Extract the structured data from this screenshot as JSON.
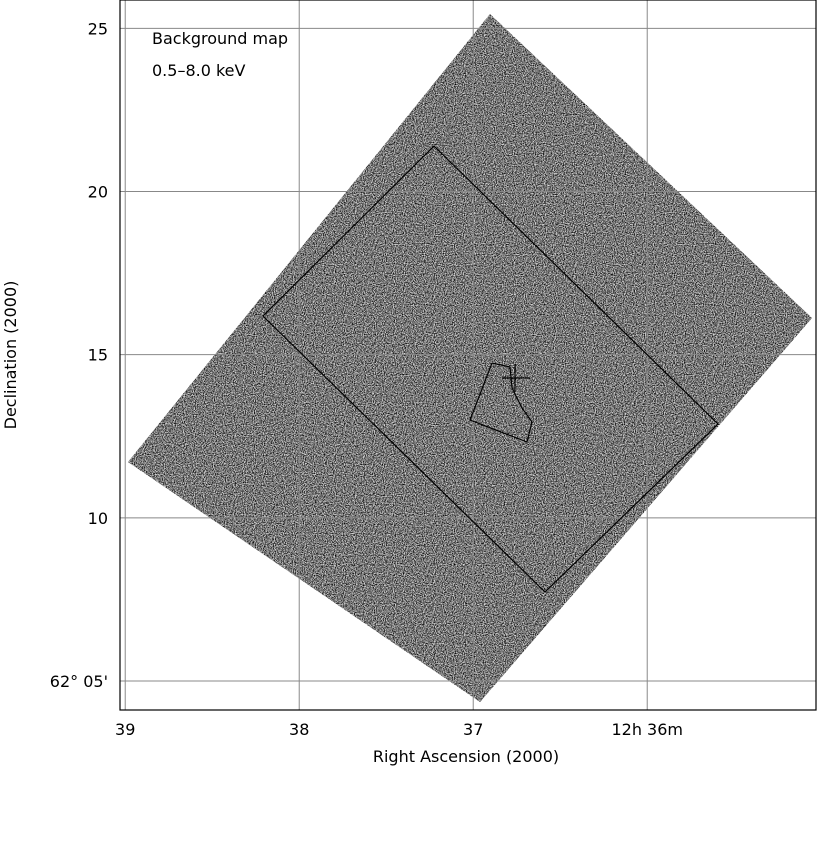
{
  "chart_data": {
    "type": "sky-map",
    "annotations": [
      "Background map",
      "0.5–8.0 keV"
    ],
    "x_label": "Right Ascension (2000)",
    "y_label": "Declination (2000)",
    "xlim": [
      39.03,
      35.03
    ],
    "ylim": [
      4.11,
      25.87
    ],
    "xticks": [
      39,
      38,
      37,
      {
        "value": 36,
        "label": "12h 36m"
      }
    ],
    "yticks": [
      25,
      20,
      15,
      10,
      {
        "value": 5,
        "label": "62° 05'"
      }
    ],
    "grid": true,
    "grid_color": "#888888"
  }
}
